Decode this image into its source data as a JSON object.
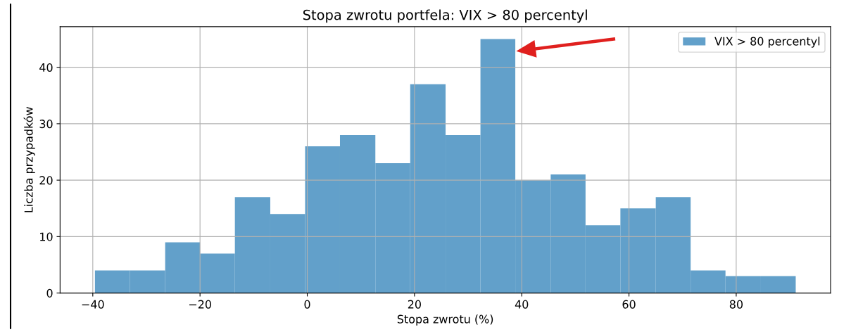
{
  "chart_data": {
    "type": "histogram",
    "title": "Stopa zwrotu portfela: VIX > 80 percentyl",
    "xlabel": "Stopa zwrotu (%)",
    "ylabel": "Liczba przypadków",
    "bins": [
      -39.6,
      -33.1,
      -26.5,
      -20.0,
      -13.5,
      -6.9,
      -0.4,
      6.1,
      12.7,
      19.2,
      25.8,
      32.3,
      38.8,
      45.4,
      51.9,
      58.4,
      65.0,
      71.5,
      78.0,
      84.6,
      91.1
    ],
    "series": [
      {
        "name": "VIX > 80 percentyl",
        "color": "#62a0ca",
        "values": [
          4,
          4,
          9,
          7,
          17,
          14,
          26,
          28,
          23,
          37,
          28,
          45,
          20,
          21,
          12,
          15,
          17,
          4,
          3,
          3
        ]
      }
    ],
    "xlim": [
      -46.1,
      97.6
    ],
    "ylim": [
      0,
      47.2
    ],
    "xticks": [
      {
        "value": -40,
        "label": "−40"
      },
      {
        "value": -20,
        "label": "−20"
      },
      0,
      20,
      40,
      60,
      80
    ],
    "yticks": [
      0,
      10,
      20,
      30,
      40
    ],
    "grid": true,
    "legend": "top right"
  }
}
